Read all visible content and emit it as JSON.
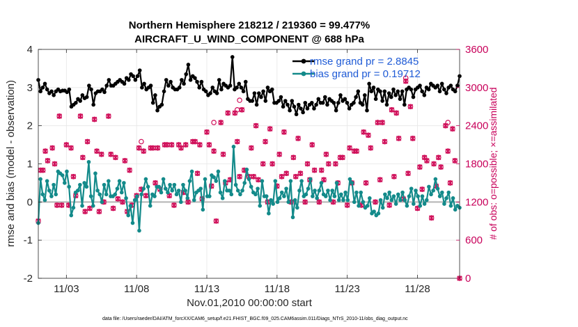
{
  "chart_data": {
    "type": "line",
    "title": "Northern Hemisphere 218212 / 219360 = 99.477%",
    "subtitle": "AIRCRAFT_U_WIND_COMPONENT @ 688 hPa",
    "xlabel": "Nov.01,2010 00:00:00 start",
    "ylabel": "rmse and bias (model - observation)",
    "ylabel_right": "# of obs: o=possible; ×=assimilated",
    "footnote": "data file: /Users/raeder/DAI/ATM_forcXX/CAM6_setup/f.e21.FHIST_BGC.f09_025.CAM6assim.011/Diags_NTrS_2010-11/obs_diag_output.nc",
    "xlim": [
      1,
      31
    ],
    "ylim": [
      -2,
      4
    ],
    "ylim_right": [
      0,
      3600
    ],
    "x_ticks": [
      3,
      8,
      13,
      18,
      23,
      28
    ],
    "x_tick_labels": [
      "11/03",
      "11/08",
      "11/13",
      "11/18",
      "11/23",
      "11/28"
    ],
    "y_ticks": [
      "-2",
      "-1",
      "0",
      "1",
      "2",
      "3",
      "4"
    ],
    "y_ticks_right": [
      "0",
      "600",
      "1200",
      "1800",
      "2400",
      "3000",
      "3600"
    ],
    "grid": true,
    "legend_position": "top-right",
    "colors": {
      "rmse": "#000000",
      "bias": "#138a8a",
      "obs": "#d0105a",
      "zero_line": "#b4b4b4",
      "legend_text": "#1f5bd6"
    },
    "series": [
      {
        "name": "rmse grand pr = 2.8845",
        "color": "#000000",
        "values": [
          3.2,
          2.9,
          3.0,
          3.1,
          2.95,
          2.85,
          2.9,
          2.8,
          2.9,
          2.95,
          2.9,
          2.92,
          2.92,
          2.88,
          2.95,
          2.5,
          2.55,
          2.6,
          2.7,
          2.65,
          2.8,
          2.72,
          2.75,
          3.05,
          2.95,
          2.55,
          2.85,
          2.9,
          2.9,
          2.95,
          2.88,
          3.05,
          3.2,
          3.05,
          3.05,
          3.1,
          3.15,
          3.2,
          3.15,
          3.1,
          3.25,
          3.2,
          3.35,
          3.3,
          3.2,
          3.3,
          3.45,
          3.0,
          3.1,
          2.95,
          3.0,
          3.05,
          2.6,
          2.8,
          2.4,
          2.5,
          2.55,
          2.9,
          3.2,
          3.05,
          3.15,
          3.0,
          2.95,
          2.95,
          3.0,
          3.2,
          3.1,
          3.35,
          3.6,
          3.2,
          3.3,
          3.25,
          3.15,
          3.0,
          3.15,
          2.95,
          2.9,
          2.8,
          2.85,
          3.0,
          2.9,
          2.85,
          3.2,
          2.95,
          3.1,
          3.05,
          3.0,
          3.05,
          3.8,
          2.95,
          3.0,
          3.1,
          3.0,
          2.9,
          3.15,
          2.7,
          2.65,
          2.65,
          2.85,
          2.55,
          2.85,
          2.75,
          2.9,
          2.65,
          3.0,
          2.9,
          2.95,
          2.6,
          2.6,
          2.65,
          2.75,
          2.5,
          2.65,
          2.55,
          2.4,
          2.65,
          2.5,
          2.3,
          2.55,
          2.45,
          2.35,
          2.6,
          2.45,
          2.55,
          2.6,
          2.45,
          2.55,
          2.7,
          2.6,
          2.6,
          2.75,
          2.55,
          2.7,
          2.65,
          2.6,
          2.4,
          2.6,
          2.8,
          2.65,
          2.7,
          2.6,
          2.45,
          2.55,
          2.6,
          2.75,
          2.9,
          2.6,
          2.55,
          2.8,
          2.4,
          3.1,
          2.9,
          3.0,
          2.7,
          2.95,
          2.9,
          2.65,
          2.9,
          2.55,
          2.85,
          2.75,
          2.95,
          2.8,
          2.9,
          2.7,
          2.9,
          2.55,
          2.95,
          3.0,
          2.95,
          2.75,
          2.95,
          3.0,
          3.05,
          2.9,
          2.8,
          3.0,
          2.95,
          3.1,
          3.05,
          3.0,
          3.05,
          2.9,
          3.1,
          2.95,
          2.85,
          3.0,
          3.05,
          2.95,
          2.9,
          3.05,
          3.3
        ],
        "__x_step": 0.1667
      },
      {
        "name": "bias grand pr = 0.19712",
        "color": "#138a8a",
        "values": [
          -0.55,
          0.6,
          0.2,
          0.05,
          0.55,
          0.3,
          0.15,
          0.45,
          0.2,
          0.8,
          0.75,
          0.7,
          0.5,
          0.8,
          0.4,
          -0.35,
          -0.15,
          0.25,
          0.3,
          0.45,
          -0.1,
          0.5,
          0.4,
          1.05,
          0.15,
          -0.1,
          0.75,
          0.3,
          0.2,
          0.0,
          0.45,
          0.2,
          0.55,
          0.15,
          0.15,
          0.2,
          0.35,
          0.55,
          0.25,
          0.5,
          0.1,
          -0.35,
          -0.1,
          -0.55,
          0.05,
          0.15,
          -0.75,
          0.2,
          0.35,
          0.6,
          0.4,
          -0.1,
          0.2,
          0.15,
          0.4,
          0.4,
          0.25,
          0.6,
          0.35,
          0.25,
          0.45,
          0.3,
          0.45,
          0.2,
          0.3,
          0.0,
          0.45,
          0.3,
          0.1,
          0.55,
          0.8,
          0.05,
          0.25,
          0.3,
          0.35,
          -0.2,
          0.6,
          0.15,
          0.15,
          0.7,
          0.65,
          0.55,
          0.8,
          0.25,
          0.1,
          0.55,
          0.3,
          0.3,
          0.2,
          1.45,
          0.45,
          0.3,
          0.2,
          0.3,
          0.5,
          0.85,
          0.6,
          0.4,
          0.25,
          0.2,
          0.35,
          -0.1,
          0.55,
          0.15,
          0.15,
          -0.3,
          0.05,
          -0.05,
          0.55,
          0.0,
          0.1,
          0.25,
          0.15,
          0.35,
          0.0,
          0.55,
          -0.4,
          0.05,
          -0.15,
          0.3,
          0.55,
          0.15,
          0.2,
          0.35,
          0.6,
          0.15,
          0.3,
          0.1,
          0.3,
          0.5,
          0.2,
          0.15,
          0.3,
          0.05,
          0.3,
          0.15,
          0.5,
          0.05,
          0.2,
          0.05,
          0.25,
          0.05,
          0.6,
          0.5,
          0.0,
          0.25,
          -0.1,
          0.25,
          0.0,
          -0.15,
          -0.1,
          0.1,
          -0.3,
          -0.25,
          -0.35,
          -0.3,
          0.05,
          -0.15,
          0.2,
          0.1,
          0.25,
          0.05,
          0.15,
          -0.05,
          0.2,
          0.05,
          0.25,
          0.05,
          -0.1,
          0.15,
          0.35,
          -0.05,
          0.3,
          0.15,
          -0.1,
          0.15,
          -0.05,
          0.05,
          0.4,
          0.2,
          0.3,
          0.6,
          0.35,
          0.15,
          0.25,
          -0.05,
          0.1,
          0.25,
          -0.1,
          0.1,
          -0.2,
          -0.1,
          -0.15
        ]
      }
    ],
    "obs_counts": [
      [
        1.0,
        900
      ],
      [
        1.1667,
        1700
      ],
      [
        1.3333,
        1700
      ],
      [
        1.5,
        2000
      ],
      [
        1.6667,
        1850
      ],
      [
        2.0,
        2050
      ],
      [
        2.1667,
        1800
      ],
      [
        2.3333,
        1150
      ],
      [
        2.5,
        2550
      ],
      [
        2.6667,
        1150
      ],
      [
        3.0,
        2100
      ],
      [
        3.1667,
        1150
      ],
      [
        3.3333,
        2050
      ],
      [
        3.5,
        1600
      ],
      [
        3.6667,
        1300
      ],
      [
        4.0,
        2550
      ],
      [
        4.1667,
        1900
      ],
      [
        4.3333,
        1050
      ],
      [
        4.5,
        2150
      ],
      [
        4.6667,
        1100
      ],
      [
        5.0,
        2500
      ],
      [
        5.1667,
        2000
      ],
      [
        5.3333,
        1050
      ],
      [
        5.5,
        1950
      ],
      [
        5.6667,
        1200
      ],
      [
        6.0,
        2550
      ],
      [
        6.1667,
        1950
      ],
      [
        6.3333,
        1100
      ],
      [
        6.5,
        1900
      ],
      [
        6.6667,
        1250
      ],
      [
        7.0,
        1200
      ],
      [
        7.1667,
        1850
      ],
      [
        7.3333,
        1050
      ],
      [
        7.5,
        1700
      ],
      [
        7.6667,
        1150
      ],
      [
        8.0,
        1300
      ],
      [
        8.1667,
        2050
      ],
      [
        8.3333,
        1400
      ],
      [
        8.5,
        2000
      ],
      [
        8.6667,
        1300
      ],
      [
        9.0,
        2050
      ],
      [
        9.1667,
        2050
      ],
      [
        9.3333,
        1500
      ],
      [
        9.5,
        2050
      ],
      [
        9.6667,
        1400
      ],
      [
        10.0,
        2100
      ],
      [
        10.1667,
        2100
      ],
      [
        10.3333,
        1300
      ],
      [
        10.5,
        2100
      ],
      [
        10.6667,
        1150
      ],
      [
        11.0,
        2100
      ],
      [
        11.1667,
        2050
      ],
      [
        11.3333,
        1350
      ],
      [
        11.5,
        2100
      ],
      [
        11.6667,
        1200
      ],
      [
        12.0,
        2150
      ],
      [
        12.1667,
        2150
      ],
      [
        12.3333,
        1650
      ],
      [
        12.5,
        2100
      ],
      [
        12.6667,
        1250
      ],
      [
        13.0,
        2300
      ],
      [
        13.1667,
        2100
      ],
      [
        13.3333,
        1450
      ],
      [
        13.5,
        2000
      ],
      [
        13.6667,
        900
      ],
      [
        14.0,
        2450
      ],
      [
        14.1667,
        1950
      ],
      [
        14.3333,
        1500
      ],
      [
        14.5,
        2600
      ],
      [
        14.6667,
        1550
      ],
      [
        15.0,
        2600
      ],
      [
        15.1667,
        2150
      ],
      [
        15.3333,
        1600
      ],
      [
        15.5,
        2650
      ],
      [
        15.6667,
        1700
      ],
      [
        16.0,
        1600
      ],
      [
        16.1667,
        2050
      ],
      [
        16.3333,
        1600
      ],
      [
        16.5,
        2400
      ],
      [
        16.6667,
        1550
      ],
      [
        17.0,
        1800
      ],
      [
        17.1667,
        2150
      ],
      [
        17.3333,
        1200
      ],
      [
        17.5,
        2350
      ],
      [
        17.6667,
        1800
      ],
      [
        18.0,
        1450
      ],
      [
        18.1667,
        1950
      ],
      [
        18.3333,
        1600
      ],
      [
        18.5,
        2300
      ],
      [
        18.6667,
        1650
      ],
      [
        19.0,
        1200
      ],
      [
        19.1667,
        1900
      ],
      [
        19.3333,
        1600
      ],
      [
        19.5,
        2200
      ],
      [
        19.6667,
        1650
      ],
      [
        20.0,
        1200
      ],
      [
        20.1667,
        1800
      ],
      [
        20.3333,
        1550
      ],
      [
        20.5,
        2100
      ],
      [
        20.6667,
        1700
      ],
      [
        21.0,
        1200
      ],
      [
        21.1667,
        1700
      ],
      [
        21.3333,
        1550
      ],
      [
        21.5,
        1950
      ],
      [
        21.6667,
        1800
      ],
      [
        22.0,
        1200
      ],
      [
        22.1667,
        1800
      ],
      [
        22.3333,
        1500
      ],
      [
        22.5,
        1900
      ],
      [
        22.6667,
        1900
      ],
      [
        23.0,
        1150
      ],
      [
        23.1667,
        2050
      ],
      [
        23.3333,
        1500
      ],
      [
        23.5,
        2000
      ],
      [
        23.6667,
        2000
      ],
      [
        24.0,
        1150
      ],
      [
        24.1667,
        2300
      ],
      [
        24.3333,
        1500
      ],
      [
        24.5,
        2250
      ],
      [
        24.6667,
        2050
      ],
      [
        25.0,
        1200
      ],
      [
        25.1667,
        2450
      ],
      [
        25.3333,
        1550
      ],
      [
        25.5,
        2450
      ],
      [
        25.6667,
        2150
      ],
      [
        26.0,
        1150
      ],
      [
        26.1667,
        2650
      ],
      [
        26.3333,
        1600
      ],
      [
        26.5,
        2600
      ],
      [
        26.6667,
        2200
      ],
      [
        27.0,
        1250
      ],
      [
        27.1667,
        3100
      ],
      [
        27.3333,
        1650
      ],
      [
        27.5,
        2700
      ],
      [
        27.6667,
        2200
      ],
      [
        28.0,
        1100
      ],
      [
        28.1667,
        1750
      ],
      [
        28.3333,
        1400
      ],
      [
        28.5,
        1900
      ],
      [
        28.6667,
        1850
      ],
      [
        29.0,
        950
      ],
      [
        29.1667,
        1800
      ],
      [
        29.3333,
        1450
      ],
      [
        29.5,
        1900
      ],
      [
        29.6667,
        1750
      ],
      [
        30.0,
        2400
      ],
      [
        30.1667,
        2000
      ],
      [
        30.3333,
        1500
      ],
      [
        30.5,
        2350
      ],
      [
        30.6667,
        1850
      ],
      [
        31.0,
        0
      ]
    ],
    "obs_possible_extra": [
      [
        8.3333,
        2150
      ],
      [
        13.5,
        2450
      ],
      [
        15.1667,
        2650
      ],
      [
        15.3333,
        2800
      ],
      [
        27.1667,
        3150
      ],
      [
        30.1667,
        2450
      ]
    ]
  }
}
